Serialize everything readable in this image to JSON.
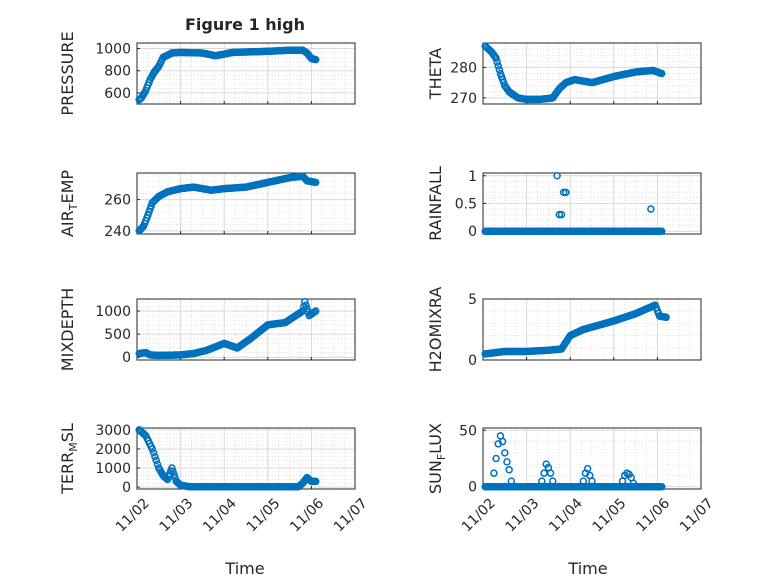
{
  "figure": {
    "title": "Figure 1 high"
  },
  "colors": {
    "marker": "#0072BD",
    "axis": "#262626",
    "grid": "#d9d9d9"
  },
  "x_axis": {
    "label": "Time",
    "ticks": [
      0,
      1,
      2,
      3,
      4,
      5
    ],
    "tick_labels": [
      "11/02",
      "11/03",
      "11/04",
      "11/05",
      "11/06",
      "11/07"
    ],
    "lim": [
      0,
      5
    ]
  },
  "chart_data": [
    {
      "type": "scatter",
      "ylabel_main": "PRESSURE",
      "ylabel_sub": "",
      "ylabel_tail": "",
      "ylim": [
        500,
        1050
      ],
      "yticks": [
        600,
        800,
        1000
      ],
      "ytick_labels": [
        "600",
        "800",
        "1000"
      ],
      "anchors": [
        [
          0.05,
          540
        ],
        [
          0.1,
          555
        ],
        [
          0.2,
          620
        ],
        [
          0.3,
          720
        ],
        [
          0.4,
          790
        ],
        [
          0.5,
          840
        ],
        [
          0.6,
          920
        ],
        [
          0.7,
          940
        ],
        [
          0.8,
          960
        ],
        [
          1,
          965
        ],
        [
          1.5,
          960
        ],
        [
          1.8,
          935
        ],
        [
          2.2,
          965
        ],
        [
          3,
          975
        ],
        [
          3.5,
          985
        ],
        [
          3.8,
          985
        ],
        [
          3.9,
          960
        ],
        [
          4,
          910
        ],
        [
          4.1,
          900
        ]
      ]
    },
    {
      "type": "scatter",
      "ylabel_main": "THETA",
      "ylabel_sub": "",
      "ylabel_tail": "",
      "ylim": [
        268,
        288
      ],
      "yticks": [
        270,
        280
      ],
      "ytick_labels": [
        "270",
        "280"
      ],
      "anchors": [
        [
          0.05,
          287
        ],
        [
          0.2,
          285
        ],
        [
          0.3,
          283
        ],
        [
          0.4,
          278
        ],
        [
          0.5,
          274
        ],
        [
          0.6,
          272
        ],
        [
          0.8,
          270
        ],
        [
          1,
          269.5
        ],
        [
          1.3,
          269.5
        ],
        [
          1.6,
          270
        ],
        [
          1.75,
          273
        ],
        [
          1.9,
          275
        ],
        [
          2.1,
          276
        ],
        [
          2.5,
          275
        ],
        [
          3,
          277
        ],
        [
          3.5,
          278.5
        ],
        [
          3.9,
          279
        ],
        [
          4.1,
          278
        ]
      ]
    },
    {
      "type": "scatter",
      "ylabel_main": "AIR",
      "ylabel_sub": "T",
      "ylabel_tail": "EMP",
      "ylim": [
        238,
        277
      ],
      "yticks": [
        240,
        260
      ],
      "ytick_labels": [
        "240",
        "260"
      ],
      "anchors": [
        [
          0.05,
          240
        ],
        [
          0.15,
          243
        ],
        [
          0.25,
          250
        ],
        [
          0.35,
          258
        ],
        [
          0.5,
          262
        ],
        [
          0.7,
          265
        ],
        [
          1,
          267
        ],
        [
          1.3,
          268
        ],
        [
          1.7,
          266
        ],
        [
          2,
          267
        ],
        [
          2.5,
          268
        ],
        [
          3,
          271
        ],
        [
          3.5,
          274
        ],
        [
          3.8,
          275
        ],
        [
          3.9,
          272
        ],
        [
          4.1,
          271
        ]
      ]
    },
    {
      "type": "scatter",
      "ylabel_main": "RAINFALL",
      "ylabel_sub": "",
      "ylabel_tail": "",
      "ylim": [
        -0.05,
        1.05
      ],
      "yticks": [
        0,
        0.5,
        1
      ],
      "ytick_labels": [
        "0",
        "0.5",
        "1"
      ],
      "anchors": [
        [
          0.05,
          0
        ],
        [
          4.1,
          0
        ]
      ],
      "extra_points": [
        [
          1.7,
          1
        ],
        [
          1.75,
          0.3
        ],
        [
          1.8,
          0.3
        ],
        [
          1.85,
          0.7
        ],
        [
          1.9,
          0.7
        ],
        [
          3.85,
          0.4
        ]
      ]
    },
    {
      "type": "scatter",
      "ylabel_main": "MIXDEPTH",
      "ylabel_sub": "",
      "ylabel_tail": "",
      "ylim": [
        -60,
        1260
      ],
      "yticks": [
        0,
        500,
        1000
      ],
      "ytick_labels": [
        "0",
        "500",
        "1000"
      ],
      "anchors": [
        [
          0.05,
          80
        ],
        [
          0.2,
          100
        ],
        [
          0.3,
          50
        ],
        [
          0.5,
          40
        ],
        [
          1,
          50
        ],
        [
          1.3,
          80
        ],
        [
          1.6,
          150
        ],
        [
          2,
          300
        ],
        [
          2.3,
          200
        ],
        [
          2.6,
          400
        ],
        [
          3,
          700
        ],
        [
          3.4,
          750
        ],
        [
          3.8,
          1000
        ],
        [
          3.85,
          1200
        ],
        [
          3.95,
          900
        ],
        [
          4.1,
          1000
        ]
      ]
    },
    {
      "type": "scatter",
      "ylabel_main": "H2OMIXRA",
      "ylabel_sub": "",
      "ylabel_tail": "",
      "ylim": [
        0,
        5
      ],
      "yticks": [
        0,
        5
      ],
      "ytick_labels": [
        "0",
        "5"
      ],
      "anchors": [
        [
          0.05,
          0.5
        ],
        [
          0.5,
          0.7
        ],
        [
          1,
          0.7
        ],
        [
          1.5,
          0.8
        ],
        [
          1.8,
          0.9
        ],
        [
          2,
          2
        ],
        [
          2.3,
          2.5
        ],
        [
          2.6,
          2.8
        ],
        [
          3,
          3.2
        ],
        [
          3.5,
          3.8
        ],
        [
          3.95,
          4.5
        ],
        [
          4.05,
          3.6
        ],
        [
          4.2,
          3.5
        ]
      ]
    },
    {
      "type": "scatter",
      "ylabel_main": "TERR",
      "ylabel_sub": "M",
      "ylabel_tail": "SL",
      "ylim": [
        -100,
        3100
      ],
      "yticks": [
        0,
        1000,
        2000,
        3000
      ],
      "ytick_labels": [
        "0",
        "1000",
        "2000",
        "3000"
      ],
      "anchors": [
        [
          0.05,
          3000
        ],
        [
          0.2,
          2700
        ],
        [
          0.35,
          2000
        ],
        [
          0.5,
          1000
        ],
        [
          0.6,
          600
        ],
        [
          0.7,
          400
        ],
        [
          0.8,
          1000
        ],
        [
          0.9,
          300
        ],
        [
          1,
          100
        ],
        [
          1.2,
          20
        ],
        [
          3.7,
          20
        ],
        [
          3.8,
          200
        ],
        [
          3.9,
          500
        ],
        [
          4,
          300
        ],
        [
          4.1,
          300
        ]
      ]
    },
    {
      "type": "scatter",
      "ylabel_main": "SUN",
      "ylabel_sub": "F",
      "ylabel_tail": "LUX",
      "ylim": [
        -2,
        52
      ],
      "yticks": [
        0,
        50
      ],
      "ytick_labels": [
        "0",
        "50"
      ],
      "anchors": [
        [
          0.05,
          0
        ],
        [
          4.1,
          0
        ]
      ],
      "extra_points": [
        [
          0.25,
          12
        ],
        [
          0.3,
          25
        ],
        [
          0.35,
          38
        ],
        [
          0.4,
          45
        ],
        [
          0.45,
          40
        ],
        [
          0.5,
          30
        ],
        [
          0.55,
          22
        ],
        [
          0.6,
          15
        ],
        [
          0.65,
          5
        ],
        [
          1.35,
          5
        ],
        [
          1.4,
          12
        ],
        [
          1.45,
          20
        ],
        [
          1.5,
          17
        ],
        [
          1.55,
          12
        ],
        [
          1.6,
          5
        ],
        [
          2.3,
          5
        ],
        [
          2.35,
          12
        ],
        [
          2.4,
          16
        ],
        [
          2.45,
          10
        ],
        [
          2.5,
          5
        ],
        [
          3.2,
          5
        ],
        [
          3.25,
          10
        ],
        [
          3.3,
          12
        ],
        [
          3.35,
          11
        ],
        [
          3.4,
          8
        ],
        [
          3.45,
          3
        ]
      ]
    }
  ]
}
